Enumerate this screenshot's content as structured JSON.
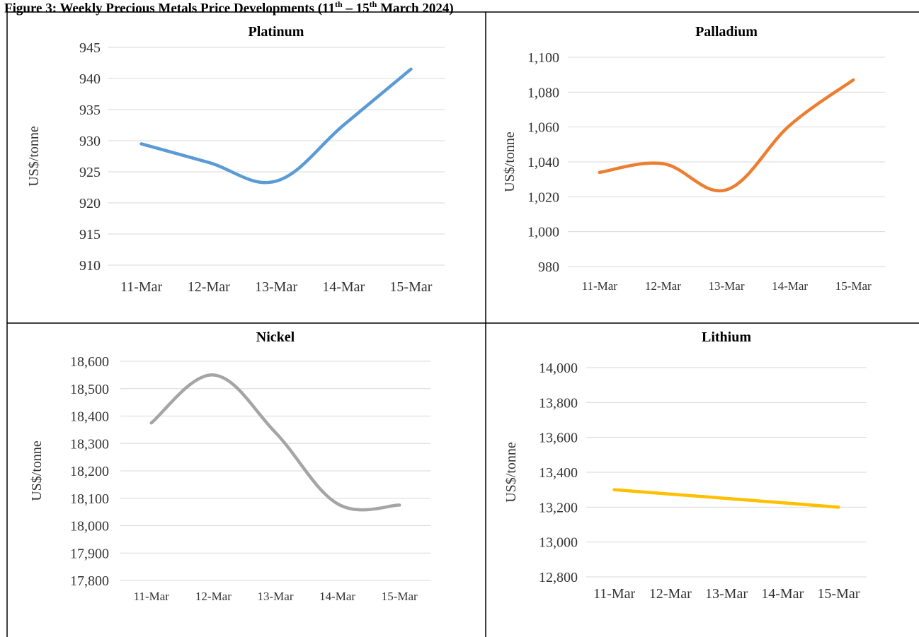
{
  "caption": {
    "text": "Figure 3: Weekly Precious Metals Price Developments (11th – 15th March 2024)"
  },
  "colors": {
    "platinum": "#5b9bd5",
    "palladium": "#ed7d31",
    "nickel": "#a5a5a5",
    "lithium": "#ffc000",
    "gridline": "#d9d9d9",
    "border": "#000000"
  },
  "chart_data": [
    {
      "type": "line",
      "title": "Platinum",
      "ylabel": "US$/tonne",
      "xlabel": "",
      "categories": [
        "11-Mar",
        "12-Mar",
        "13-Mar",
        "14-Mar",
        "15-Mar"
      ],
      "series": [
        {
          "values": [
            929.5,
            926.5,
            923.5,
            932.5,
            941.5
          ]
        }
      ],
      "ylim": [
        910,
        945
      ],
      "yticks": [
        "910",
        "915",
        "920",
        "925",
        "930",
        "935",
        "940",
        "945"
      ],
      "grid": true,
      "smooth": true
    },
    {
      "type": "line",
      "title": "Palladium",
      "ylabel": "US$/tonne",
      "xlabel": "",
      "categories": [
        "11-Mar",
        "12-Mar",
        "13-Mar",
        "14-Mar",
        "15-Mar"
      ],
      "series": [
        {
          "values": [
            1034,
            1039,
            1024,
            1061,
            1087
          ]
        }
      ],
      "ylim": [
        980,
        1100
      ],
      "yticks": [
        "980",
        "1,000",
        "1,020",
        "1,040",
        "1,060",
        "1,080",
        "1,100"
      ],
      "grid": true,
      "smooth": true
    },
    {
      "type": "line",
      "title": "Nickel",
      "ylabel": "US$/tonne",
      "xlabel": "",
      "categories": [
        "11-Mar",
        "12-Mar",
        "13-Mar",
        "14-Mar",
        "15-Mar"
      ],
      "series": [
        {
          "values": [
            18375,
            18550,
            18340,
            18080,
            18075
          ]
        }
      ],
      "ylim": [
        17800,
        18600
      ],
      "yticks": [
        "17,800",
        "17,900",
        "18,000",
        "18,100",
        "18,200",
        "18,300",
        "18,400",
        "18,500",
        "18,600"
      ],
      "grid": true,
      "smooth": true
    },
    {
      "type": "line",
      "title": "Lithium",
      "ylabel": "US$/tonne",
      "xlabel": "",
      "categories": [
        "11-Mar",
        "12-Mar",
        "13-Mar",
        "14-Mar",
        "15-Mar"
      ],
      "series": [
        {
          "values": [
            13300,
            13275,
            13250,
            13225,
            13200
          ]
        }
      ],
      "ylim": [
        12800,
        14000
      ],
      "yticks": [
        "12,800",
        "13,000",
        "13,200",
        "13,400",
        "13,600",
        "13,800",
        "14,000"
      ],
      "grid": true,
      "smooth": false
    }
  ]
}
